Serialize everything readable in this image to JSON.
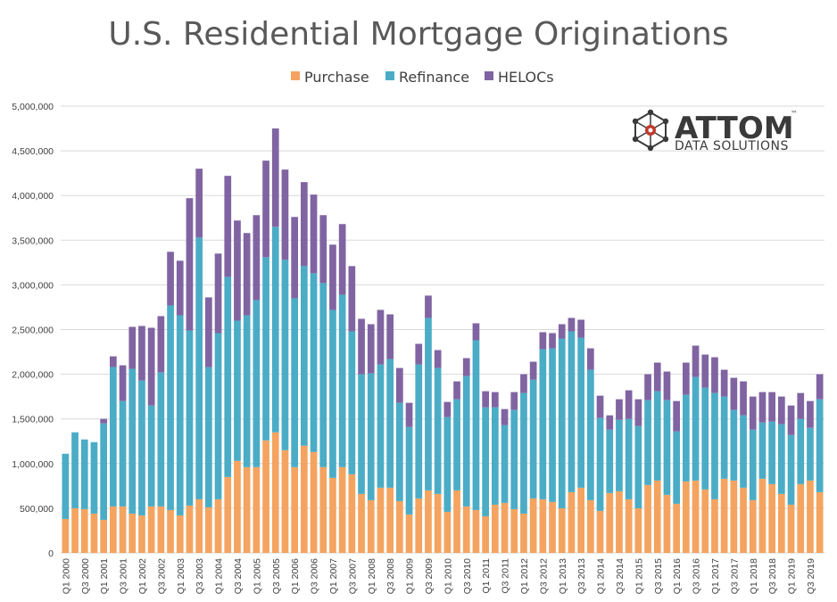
{
  "chart_data": {
    "type": "bar",
    "stacked": true,
    "title": "U.S. Residential Mortgage Originations",
    "ylim": [
      0,
      5000000
    ],
    "yticks": [
      0,
      500000,
      1000000,
      1500000,
      2000000,
      2500000,
      3000000,
      3500000,
      4000000,
      4500000,
      5000000
    ],
    "ytick_labels": [
      "0",
      "500,000",
      "1,000,000",
      "1,500,000",
      "2,000,000",
      "2,500,000",
      "3,000,000",
      "3,500,000",
      "4,000,000",
      "4,500,000",
      "5,000,000"
    ],
    "categories": [
      "Q1 2000",
      "Q2 2000",
      "Q3 2000",
      "Q4 2000",
      "Q1 2001",
      "Q2 2001",
      "Q3 2001",
      "Q4 2001",
      "Q1 2002",
      "Q2 2002",
      "Q3 2002",
      "Q4 2002",
      "Q1 2003",
      "Q2 2003",
      "Q3 2003",
      "Q4 2003",
      "Q1 2004",
      "Q2 2004",
      "Q3 2004",
      "Q4 2004",
      "Q1 2005",
      "Q2 2005",
      "Q3 2005",
      "Q4 2005",
      "Q1 2006",
      "Q2 2006",
      "Q3 2006",
      "Q4 2006",
      "Q1 2007",
      "Q2 2007",
      "Q3 2007",
      "Q4 2007",
      "Q1 2008",
      "Q2 2008",
      "Q3 2008",
      "Q4 2008",
      "Q1 2009",
      "Q2 2009",
      "Q3 2009",
      "Q4 2009",
      "Q1 2010",
      "Q2 2010",
      "Q3 2010",
      "Q4 2010",
      "Q1 2011",
      "Q2 2011",
      "Q3 2011",
      "Q4 2011",
      "Q1 2012",
      "Q2 2012",
      "Q3 2012",
      "Q4 2012",
      "Q1 2013",
      "Q2 2013",
      "Q3 2013",
      "Q4 2013",
      "Q1 2014",
      "Q2 2014",
      "Q3 2014",
      "Q4 2014",
      "Q1 2015",
      "Q2 2015",
      "Q3 2015",
      "Q4 2015",
      "Q1 2016",
      "Q2 2016",
      "Q3 2016",
      "Q4 2016",
      "Q1 2017",
      "Q2 2017",
      "Q3 2017",
      "Q4 2017",
      "Q1 2018",
      "Q2 2018",
      "Q3 2018",
      "Q4 2018",
      "Q1 2019",
      "Q2 2019",
      "Q3 2019",
      "Q4 2019"
    ],
    "tick_labels": [
      "Q1 2000",
      "Q3 2000",
      "Q1 2001",
      "Q3 2001",
      "Q1 2002",
      "Q3 2002",
      "Q1 2003",
      "Q3 2003",
      "Q1 2004",
      "Q3 2004",
      "Q1 2005",
      "Q3 2005",
      "Q1 2006",
      "Q3 2006",
      "Q1 2007",
      "Q3 2007",
      "Q1 2008",
      "Q3 2008",
      "Q1 2009",
      "Q3 2009",
      "Q1 2010",
      "Q3 2010",
      "Q1 2011",
      "Q3 2011",
      "Q1 2012",
      "Q3 2012",
      "Q1 2013",
      "Q3 2013",
      "Q1 2014",
      "Q3 2014",
      "Q1 2015",
      "Q3 2015",
      "Q1 2016",
      "Q3 2016",
      "Q1 2017",
      "Q3 2017",
      "Q1 2018",
      "Q3 2018",
      "Q1 2019",
      "Q3 2019"
    ],
    "series": [
      {
        "name": "Purchase",
        "color": "#F4A460",
        "values": [
          380000,
          500000,
          490000,
          440000,
          370000,
          520000,
          520000,
          440000,
          420000,
          520000,
          520000,
          480000,
          420000,
          530000,
          600000,
          510000,
          600000,
          850000,
          1030000,
          960000,
          960000,
          1260000,
          1350000,
          1150000,
          960000,
          1200000,
          1130000,
          960000,
          840000,
          960000,
          880000,
          660000,
          590000,
          730000,
          730000,
          580000,
          430000,
          610000,
          700000,
          660000,
          460000,
          700000,
          520000,
          480000,
          410000,
          540000,
          560000,
          490000,
          440000,
          610000,
          600000,
          570000,
          500000,
          680000,
          730000,
          590000,
          470000,
          670000,
          690000,
          600000,
          500000,
          760000,
          810000,
          650000,
          550000,
          800000,
          810000,
          710000,
          600000,
          830000,
          810000,
          730000,
          590000,
          830000,
          770000,
          660000,
          540000,
          770000,
          810000,
          680000
        ]
      },
      {
        "name": "Refinance",
        "color": "#4BACC6",
        "values": [
          730000,
          850000,
          780000,
          800000,
          1080000,
          1560000,
          1180000,
          1620000,
          1510000,
          1130000,
          1500000,
          2290000,
          2240000,
          1960000,
          2930000,
          1570000,
          1860000,
          2240000,
          1570000,
          1700000,
          1870000,
          2050000,
          2300000,
          2130000,
          1890000,
          2010000,
          2000000,
          2060000,
          1880000,
          1930000,
          1600000,
          1340000,
          1420000,
          1380000,
          1440000,
          1100000,
          980000,
          1500000,
          1930000,
          1410000,
          1060000,
          1020000,
          1460000,
          1900000,
          1220000,
          1090000,
          870000,
          1110000,
          1350000,
          1330000,
          1680000,
          1720000,
          1900000,
          1800000,
          1680000,
          1460000,
          1040000,
          710000,
          800000,
          900000,
          920000,
          950000,
          1000000,
          1060000,
          810000,
          970000,
          1160000,
          1140000,
          1190000,
          920000,
          790000,
          810000,
          790000,
          630000,
          700000,
          780000,
          780000,
          730000,
          590000,
          1040000
        ]
      },
      {
        "name": "HELOCs",
        "color": "#8064A2",
        "values": [
          0,
          0,
          0,
          0,
          50000,
          120000,
          400000,
          470000,
          610000,
          870000,
          630000,
          600000,
          610000,
          1480000,
          770000,
          780000,
          890000,
          1130000,
          1120000,
          920000,
          950000,
          1080000,
          1100000,
          1010000,
          910000,
          940000,
          880000,
          760000,
          730000,
          790000,
          730000,
          620000,
          550000,
          610000,
          500000,
          390000,
          270000,
          230000,
          250000,
          200000,
          170000,
          200000,
          200000,
          190000,
          180000,
          170000,
          180000,
          200000,
          210000,
          200000,
          190000,
          170000,
          160000,
          150000,
          200000,
          240000,
          250000,
          160000,
          230000,
          320000,
          300000,
          290000,
          320000,
          320000,
          340000,
          360000,
          350000,
          370000,
          400000,
          300000,
          360000,
          380000,
          370000,
          340000,
          330000,
          310000,
          330000,
          290000,
          300000,
          280000
        ]
      }
    ],
    "legend": [
      "Purchase",
      "Refinance",
      "HELOCs"
    ],
    "legend_position": "top-center"
  },
  "logo": {
    "name": "ATTOM",
    "subtitle": "DATA SOLUTIONS",
    "trademark": "™",
    "icon": "network-cube-icon",
    "accent_color": "#C0392B"
  }
}
